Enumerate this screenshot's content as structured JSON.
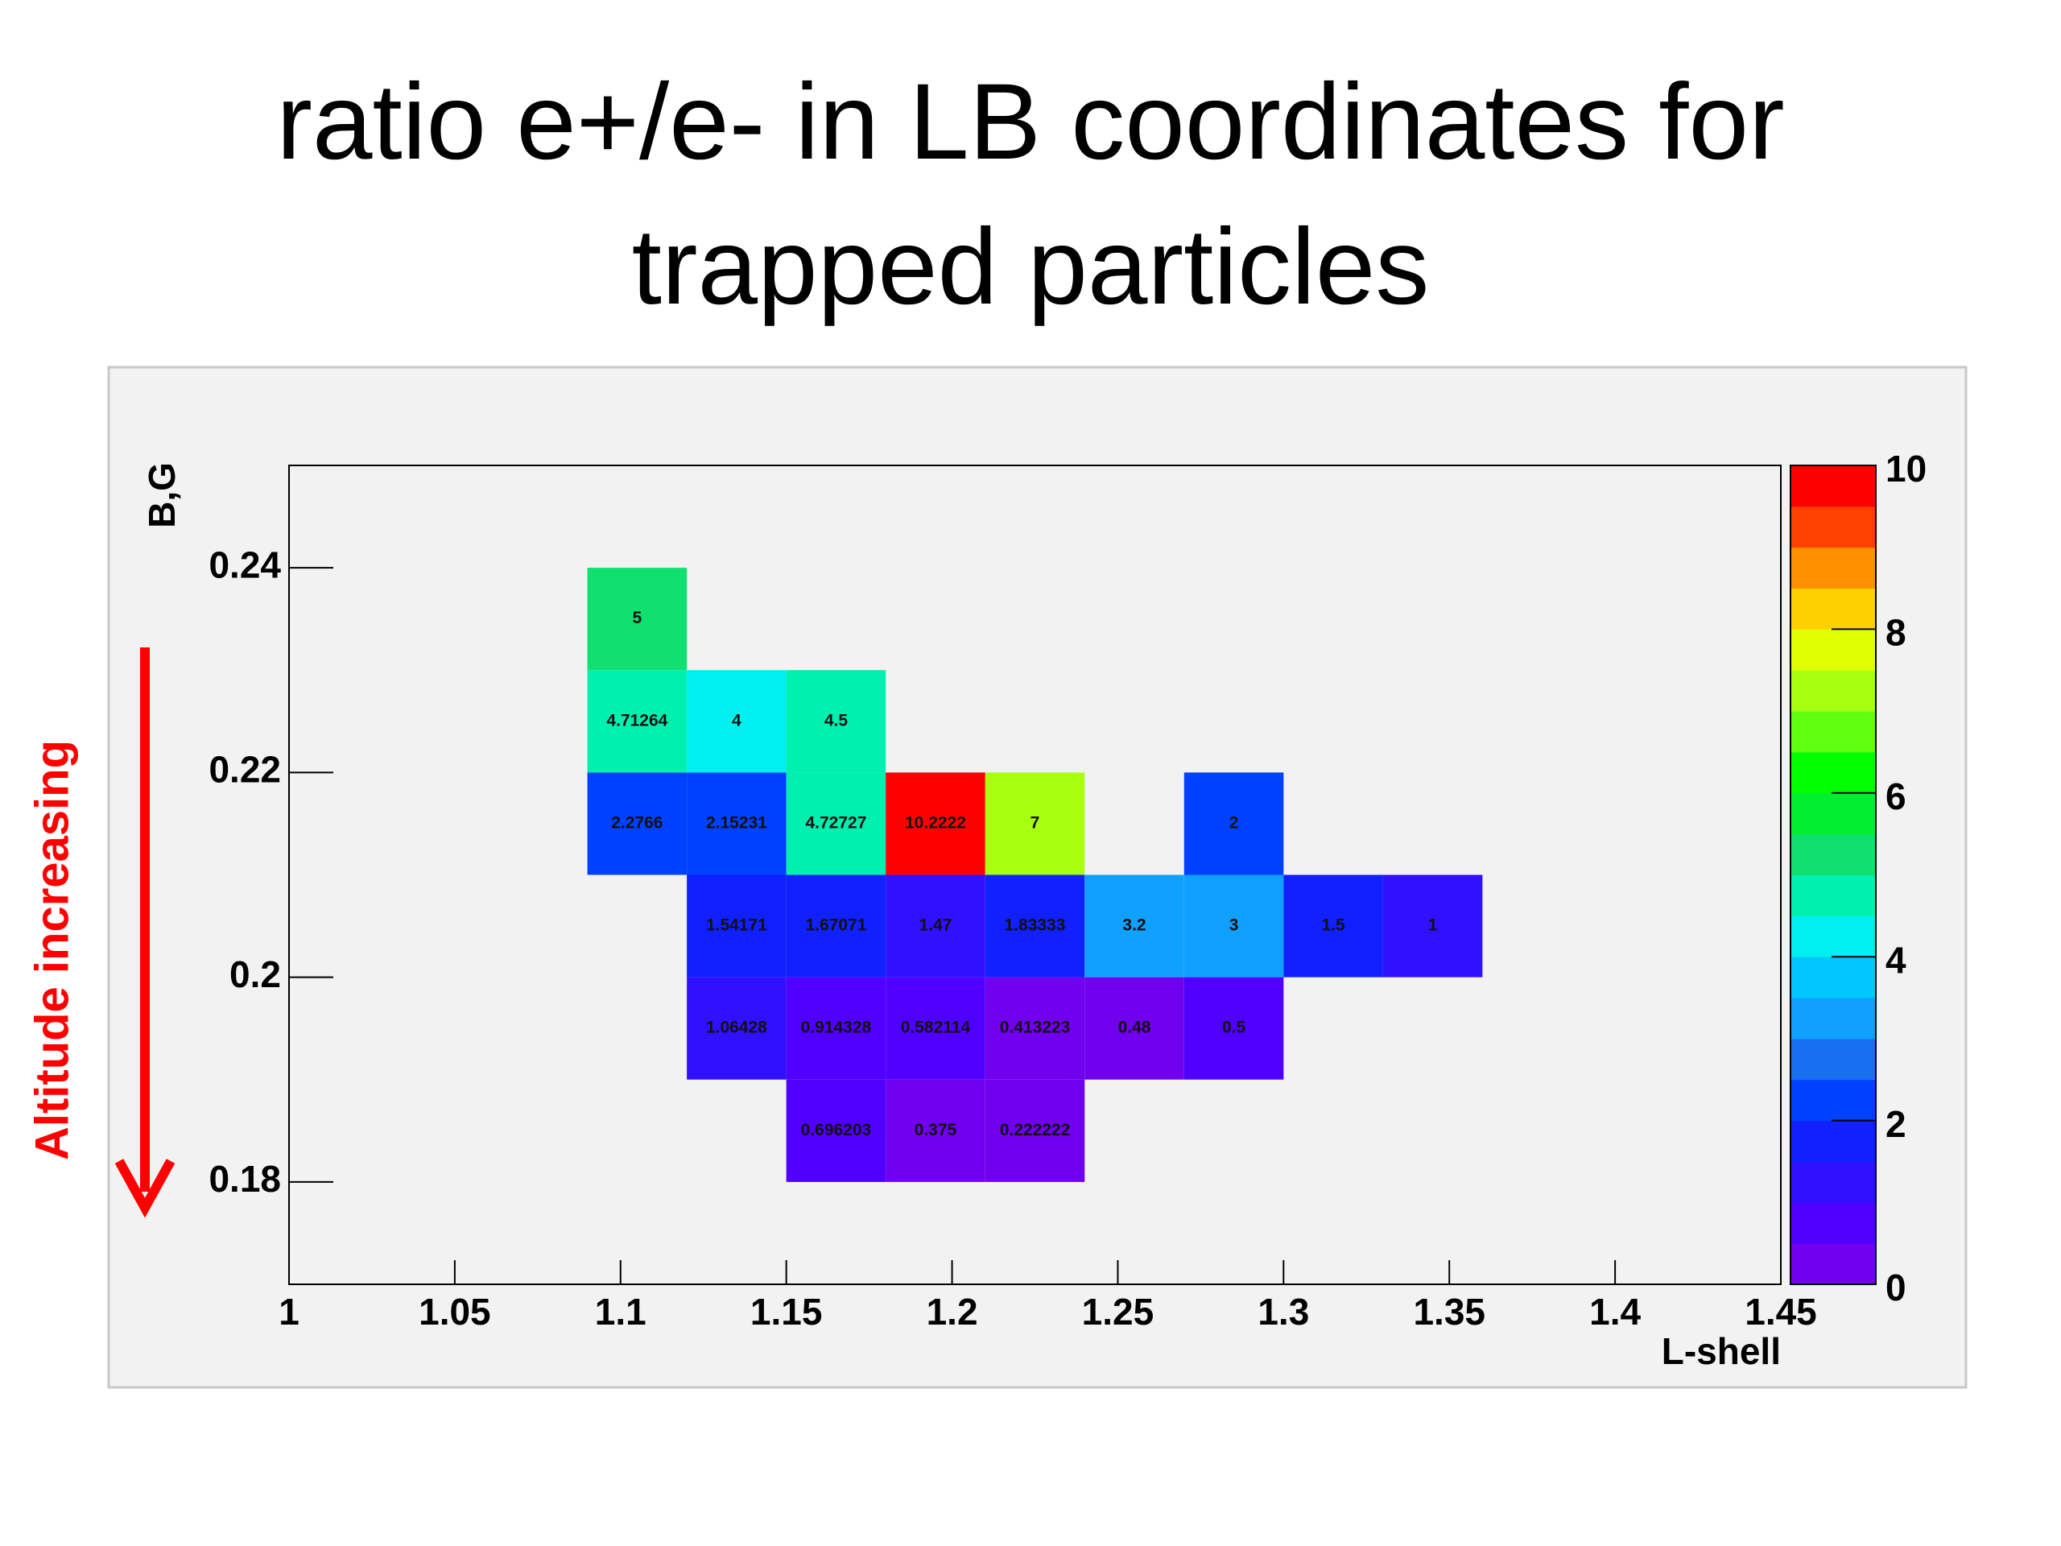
{
  "title": "ratio e+/e- in LB coordinates for trapped particles",
  "annotation": "Altitude increasing",
  "chart_data": {
    "type": "heatmap",
    "xlabel": "L-shell",
    "ylabel": "B,G",
    "xbins": [
      1.09,
      1.12,
      1.15,
      1.18,
      1.21,
      1.24,
      1.27,
      1.3,
      1.33,
      1.36
    ],
    "ybins": [
      0.18,
      0.19,
      0.2,
      0.21,
      0.22,
      0.23,
      0.24
    ],
    "z": [
      [
        null,
        null,
        0.696203,
        0.375,
        0.222222,
        null,
        null,
        null,
        null
      ],
      [
        null,
        1.06428,
        0.914328,
        0.582114,
        0.413223,
        0.48,
        0.5,
        null,
        null
      ],
      [
        null,
        1.54171,
        1.67071,
        1.47,
        1.83333,
        3.2,
        3,
        1.5,
        1
      ],
      [
        2.2766,
        2.15231,
        4.72727,
        10.2222,
        7,
        null,
        2,
        null,
        null
      ],
      [
        4.71264,
        4,
        4.5,
        null,
        null,
        null,
        null,
        null,
        null
      ],
      [
        5,
        null,
        null,
        null,
        null,
        null,
        null,
        null,
        null
      ]
    ],
    "xlim": [
      1,
      1.45
    ],
    "xticks": [
      1,
      1.05,
      1.1,
      1.15,
      1.2,
      1.25,
      1.3,
      1.35,
      1.4,
      1.45
    ],
    "ylim": [
      0.17,
      0.25
    ],
    "yticks": [
      0.18,
      0.2,
      0.22,
      0.24
    ],
    "zlim": [
      0,
      10
    ],
    "zticks": [
      0,
      2,
      4,
      6,
      8,
      10
    ],
    "palette": [
      "#7000ee",
      "#5000ff",
      "#3010ff",
      "#1020ff",
      "#0040ff",
      "#1870f0",
      "#10a0ff",
      "#00c8ff",
      "#00f0f0",
      "#00f0b0",
      "#10e070",
      "#00f030",
      "#00ff00",
      "#60ff10",
      "#a8ff10",
      "#e0ff00",
      "#ffd000",
      "#ff9000",
      "#ff4000",
      "#ff0000"
    ],
    "annotation_color": "#ff0000"
  }
}
